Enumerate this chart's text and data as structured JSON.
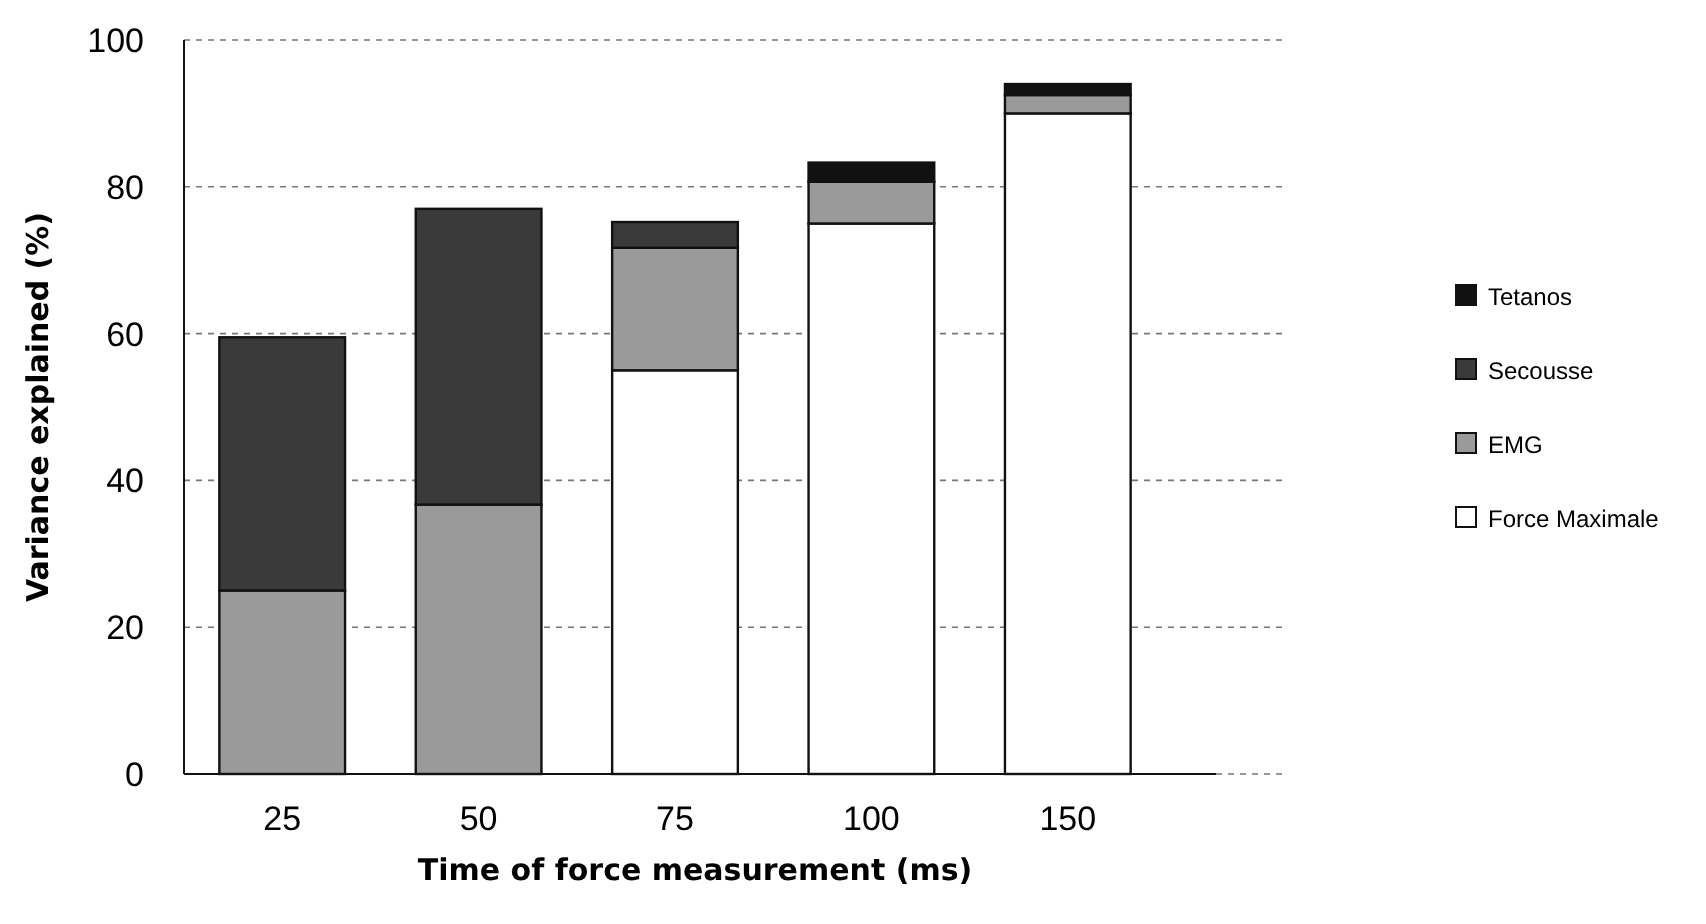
{
  "chart_data": {
    "type": "bar",
    "stacked": true,
    "xlabel": "Time of force measurement (ms)",
    "ylabel": "Variance explained (%)",
    "categories": [
      "25",
      "50",
      "75",
      "100",
      "150"
    ],
    "series": [
      {
        "name": "Force Maximale",
        "color": "#ffffff",
        "values": [
          0,
          0,
          55,
          75,
          90
        ]
      },
      {
        "name": "EMG",
        "color": "#9a9a9a",
        "values": [
          25,
          36.7,
          16.7,
          5.7,
          2.5
        ]
      },
      {
        "name": "Secousse",
        "color": "#3a3a3a",
        "values": [
          34.5,
          40.3,
          3.5,
          0,
          0
        ]
      },
      {
        "name": "Tetanos",
        "color": "#111111",
        "values": [
          0,
          0,
          0,
          2.6,
          1.5
        ]
      }
    ],
    "ylim": [
      0,
      100
    ],
    "yticks": [
      0,
      20,
      40,
      60,
      80,
      100
    ],
    "grid": "y",
    "legend": "right"
  }
}
